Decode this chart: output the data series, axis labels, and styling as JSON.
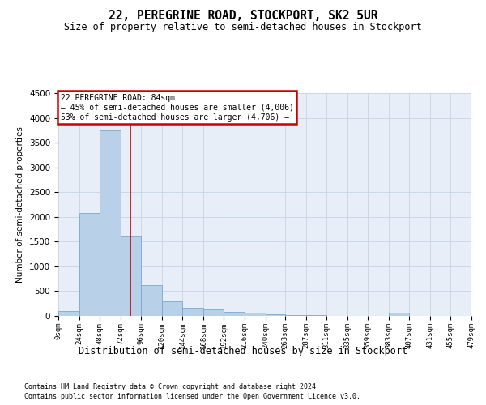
{
  "title": "22, PEREGRINE ROAD, STOCKPORT, SK2 5UR",
  "subtitle": "Size of property relative to semi-detached houses in Stockport",
  "xlabel": "Distribution of semi-detached houses by size in Stockport",
  "ylabel": "Number of semi-detached properties",
  "footer1": "Contains HM Land Registry data © Crown copyright and database right 2024.",
  "footer2": "Contains public sector information licensed under the Open Government Licence v3.0.",
  "annotation_line1": "22 PEREGRINE ROAD: 84sqm",
  "annotation_line2": "← 45% of semi-detached houses are smaller (4,006)",
  "annotation_line3": "53% of semi-detached houses are larger (4,706) →",
  "bar_color": "#b8d0e8",
  "bar_edge_color": "#7aa8cc",
  "vline_color": "#cc0000",
  "annotation_box_color": "#cc0000",
  "grid_color": "#c8d4e4",
  "bg_color": "#e8eef8",
  "property_sqm": 84,
  "ylim": [
    0,
    4500
  ],
  "yticks": [
    0,
    500,
    1000,
    1500,
    2000,
    2500,
    3000,
    3500,
    4000,
    4500
  ],
  "bin_edges": [
    0,
    24,
    48,
    72,
    96,
    120,
    144,
    168,
    192,
    216,
    240,
    263,
    287,
    311,
    335,
    359,
    383,
    407,
    431,
    455,
    479
  ],
  "bin_labels": [
    "0sqm",
    "24sqm",
    "48sqm",
    "72sqm",
    "96sqm",
    "120sqm",
    "144sqm",
    "168sqm",
    "192sqm",
    "216sqm",
    "240sqm",
    "263sqm",
    "287sqm",
    "311sqm",
    "335sqm",
    "359sqm",
    "383sqm",
    "407sqm",
    "431sqm",
    "455sqm",
    "479sqm"
  ],
  "bar_heights": [
    100,
    2075,
    3750,
    1620,
    620,
    290,
    170,
    130,
    90,
    60,
    30,
    20,
    10,
    5,
    5,
    5,
    60,
    5,
    5,
    5
  ]
}
